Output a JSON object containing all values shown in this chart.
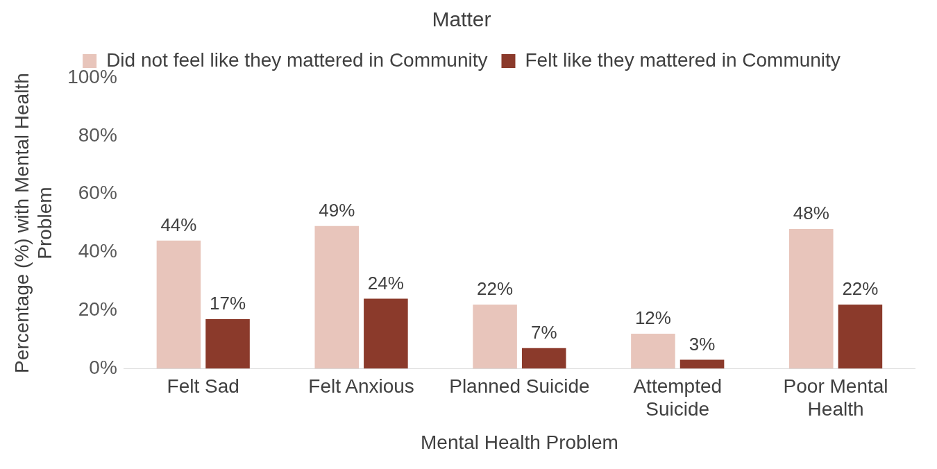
{
  "chart_data": {
    "type": "bar",
    "title": "Matter",
    "xlabel": "Mental Health Problem",
    "ylabel": "Percentage (%) with Mental Health Problem",
    "categories": [
      "Felt Sad",
      "Felt Anxious",
      "Planned Suicide",
      "Attempted Suicide",
      "Poor Mental Health"
    ],
    "series": [
      {
        "name": "Did not feel like they mattered in Community",
        "color": "#e8c5bb",
        "values": [
          44,
          49,
          22,
          12,
          48
        ],
        "value_labels": [
          "44%",
          "49%",
          "22%",
          "12%",
          "48%"
        ]
      },
      {
        "name": "Felt like they mattered in Community",
        "color": "#8b3a2b",
        "values": [
          17,
          24,
          7,
          3,
          22
        ],
        "value_labels": [
          "17%",
          "24%",
          "7%",
          "3%",
          "22%"
        ]
      }
    ],
    "ylim": [
      0,
      100
    ],
    "yticks": [
      {
        "value": 0,
        "label": "0%"
      },
      {
        "value": 20,
        "label": "20%"
      },
      {
        "value": 40,
        "label": "40%"
      },
      {
        "value": 60,
        "label": "60%"
      },
      {
        "value": 80,
        "label": "80%"
      },
      {
        "value": 100,
        "label": "100%"
      }
    ],
    "grid": false,
    "legend": "top"
  }
}
